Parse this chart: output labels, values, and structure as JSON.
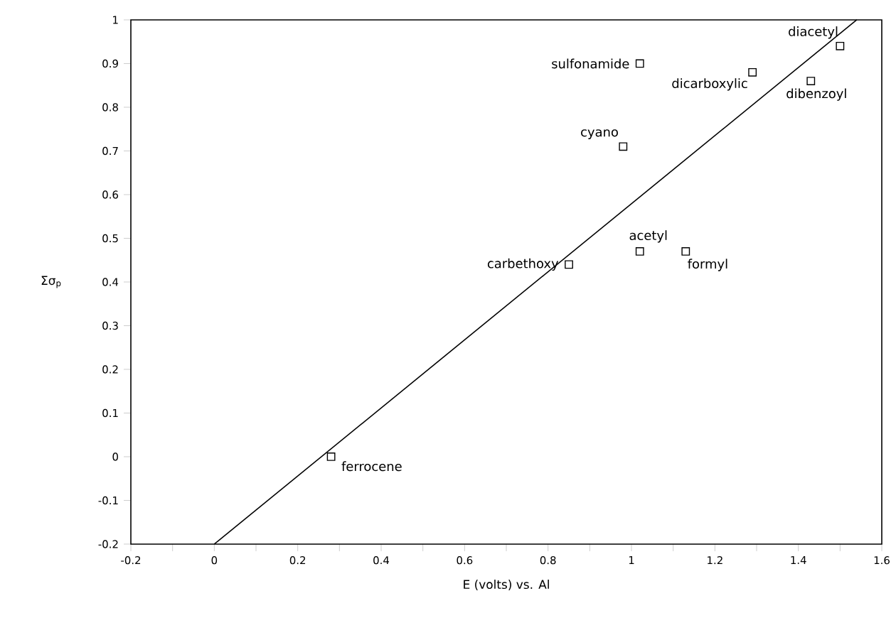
{
  "chart_data": {
    "type": "scatter",
    "xlabel": "E (volts) vs. Al",
    "ylabel": "Σσ$_{p}$",
    "xlim": [
      -0.2,
      1.6
    ],
    "ylim": [
      -0.2,
      1
    ],
    "xticks": [
      -0.2,
      {
        "value": -0.1,
        "label": null
      },
      0,
      {
        "value": 0.1,
        "label": null
      },
      0.2,
      {
        "value": 0.3,
        "label": null
      },
      0.4,
      {
        "value": 0.5,
        "label": null
      },
      0.6,
      {
        "value": 0.7,
        "label": null
      },
      0.8,
      {
        "value": 0.9,
        "label": null
      },
      1,
      {
        "value": 1.1,
        "label": null
      },
      1.2,
      {
        "value": 1.3,
        "label": null
      },
      1.4,
      {
        "value": 1.5,
        "label": null
      },
      1.6
    ],
    "yticks": [
      -0.2,
      -0.1,
      0,
      0.1,
      0.2,
      0.3,
      0.4,
      0.5,
      0.6,
      0.7,
      0.8,
      0.9,
      1
    ],
    "series": [
      {
        "marker": "square",
        "color": "#000000",
        "x": [
          0.28,
          0.85,
          1.02,
          1.13,
          0.98,
          1.02,
          1.29,
          1.43,
          1.5
        ],
        "values": [
          0,
          0.44,
          0.47,
          0.47,
          0.71,
          0.9,
          0.88,
          0.86,
          0.94
        ]
      },
      {
        "type": "line",
        "color": "#000000",
        "x": [
          0,
          1.54
        ],
        "values": [
          -0.2,
          1
        ]
      }
    ],
    "annotations": [
      {
        "text": "ferrocene",
        "x": 0.28,
        "y": 0
      },
      {
        "text": "carbethoxy",
        "x": 0.85,
        "y": 0.44
      },
      {
        "text": "acetyl",
        "x": 1.02,
        "y": 0.47
      },
      {
        "text": "formyl",
        "x": 1.13,
        "y": 0.47
      },
      {
        "text": "cyano",
        "x": 0.98,
        "y": 0.71
      },
      {
        "text": "sulfonamide",
        "x": 1.02,
        "y": 0.9
      },
      {
        "text": "dicarboxylic",
        "x": 1.29,
        "y": 0.88
      },
      {
        "text": "dibenzoyl",
        "x": 1.43,
        "y": 0.86
      },
      {
        "text": "diacetyl",
        "x": 1.5,
        "y": 0.94
      }
    ]
  }
}
